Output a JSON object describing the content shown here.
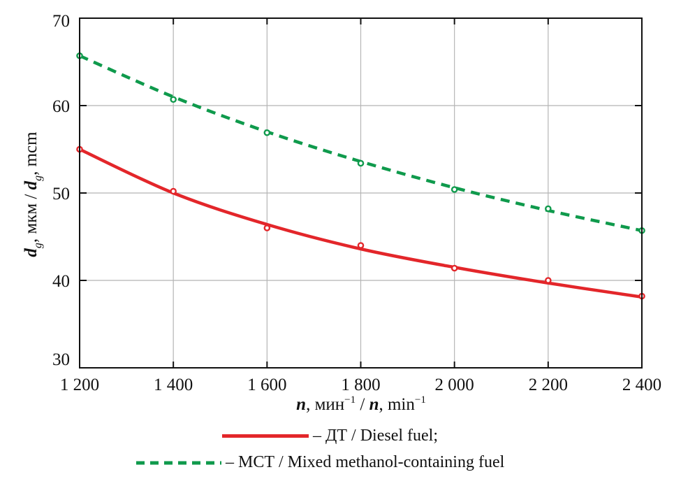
{
  "chart_data": {
    "type": "line",
    "title": "",
    "xlabel": "n, мин⁻¹ / n, min⁻¹",
    "xlabel_parts": {
      "var1": "n",
      "unit1": ", мин",
      "exp1": "−1",
      "sep": " / ",
      "var2": "n",
      "unit2": ", min",
      "exp2": "−1"
    },
    "ylabel": "d_g, мкм / d_g, mcm",
    "ylabel_parts": {
      "var1": "d",
      "sub1": "g",
      "unit1": ", мкм / ",
      "var2": "d",
      "sub2": "g",
      "unit2": ", mcm"
    },
    "x": [
      1200,
      1400,
      1600,
      1800,
      2000,
      2200,
      2400
    ],
    "x_tick_labels": [
      "1 200",
      "1 400",
      "1 600",
      "1 800",
      "2 000",
      "2 200",
      "2 400"
    ],
    "xlim": [
      1200,
      2400
    ],
    "y_ticks": [
      30,
      40,
      50,
      60,
      70
    ],
    "y_tick_labels": [
      "30",
      "40",
      "50",
      "60",
      "70"
    ],
    "ylim": [
      30,
      70
    ],
    "grid": true,
    "legend_position": "bottom-center",
    "series": [
      {
        "name": "ДТ / Diesel fuel",
        "legend_label": "– ДТ / Diesel fuel;",
        "color": "#e3262a",
        "line_style": "solid",
        "points": [
          55.0,
          50.2,
          46.0,
          44.0,
          41.4,
          40.0,
          38.2
        ],
        "fit": [
          55.0,
          50.0,
          46.4,
          43.6,
          41.5,
          39.7,
          38.1
        ]
      },
      {
        "name": "МСТ / Mixed methanol-containing fuel",
        "legend_label": "– МСТ / Mixed methanol-containing fuel",
        "color": "#0f9a4c",
        "line_style": "dashed",
        "points": [
          65.7,
          60.7,
          56.9,
          53.4,
          50.4,
          48.2,
          45.7
        ],
        "fit": [
          65.7,
          61.0,
          57.0,
          53.6,
          50.6,
          48.0,
          45.7
        ]
      }
    ]
  }
}
